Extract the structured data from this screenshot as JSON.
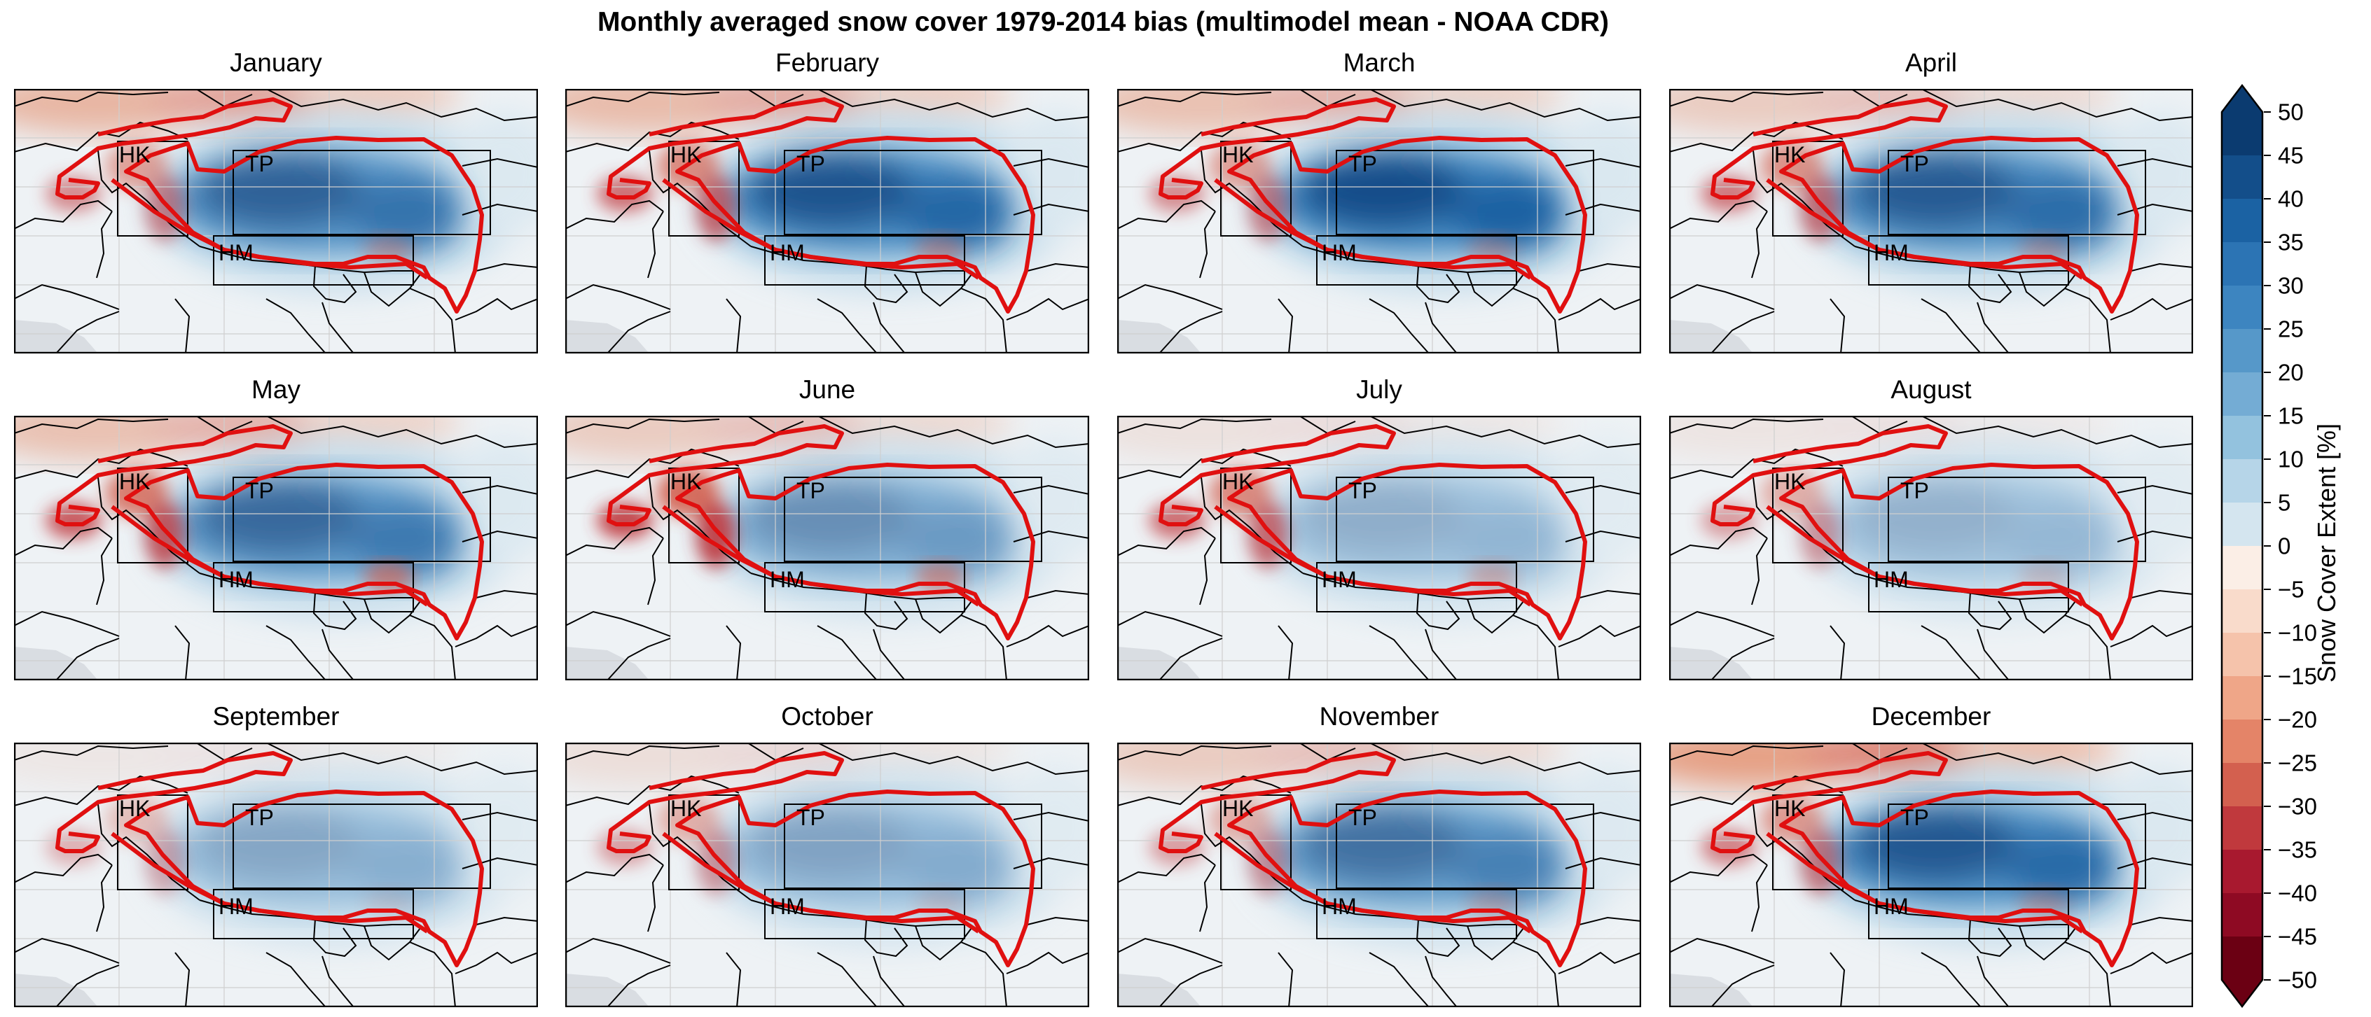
{
  "title": "Monthly averaged snow cover 1979-2014 bias (multimodel mean - NOAA CDR)",
  "months": [
    "January",
    "February",
    "March",
    "April",
    "May",
    "June",
    "July",
    "August",
    "September",
    "October",
    "November",
    "December"
  ],
  "region_labels": {
    "hk": "HK",
    "tp": "TP",
    "hm": "HM"
  },
  "colorbar": {
    "label": "Snow Cover Extent [%]",
    "ticks": [
      "50",
      "45",
      "40",
      "35",
      "30",
      "25",
      "20",
      "15",
      "10",
      "5",
      "0",
      "−5",
      "−10",
      "−15",
      "−20",
      "−25",
      "−30",
      "−35",
      "−40",
      "−45",
      "−50"
    ],
    "colors": [
      "#0b3b70",
      "#134e8a",
      "#1b62a3",
      "#2c74b4",
      "#3d85c0",
      "#5698c9",
      "#74acd4",
      "#93c2de",
      "#b6d5e8",
      "#d4e5ef",
      "#eaf1f5",
      "#fbeee6",
      "#f9dbcb",
      "#f5c3ab",
      "#efa688",
      "#e48468",
      "#d3604f",
      "#c0393d",
      "#a8192f",
      "#8e0a23",
      "#6b0013"
    ],
    "extend": "both"
  },
  "chart_data": {
    "type": "heatmap",
    "title": "Monthly averaged snow cover 1979-2014 bias (multimodel mean - NOAA CDR)",
    "colorbar_label": "Snow Cover Extent [%]",
    "colorbar_range": [
      -50,
      50
    ],
    "colorbar_step": 5,
    "panels": [
      {
        "month": "January",
        "tp_bias_peak": 40,
        "hk_bias_peak": -25,
        "north_bias_peak": -25
      },
      {
        "month": "February",
        "tp_bias_peak": 45,
        "hk_bias_peak": -30,
        "north_bias_peak": -20
      },
      {
        "month": "March",
        "tp_bias_peak": 50,
        "hk_bias_peak": -25,
        "north_bias_peak": -20
      },
      {
        "month": "April",
        "tp_bias_peak": 45,
        "hk_bias_peak": -30,
        "north_bias_peak": -15
      },
      {
        "month": "May",
        "tp_bias_peak": 40,
        "hk_bias_peak": -35,
        "north_bias_peak": -20
      },
      {
        "month": "June",
        "tp_bias_peak": 25,
        "hk_bias_peak": -40,
        "north_bias_peak": -15
      },
      {
        "month": "July",
        "tp_bias_peak": 15,
        "hk_bias_peak": -30,
        "north_bias_peak": -5
      },
      {
        "month": "August",
        "tp_bias_peak": 15,
        "hk_bias_peak": -20,
        "north_bias_peak": -5
      },
      {
        "month": "September",
        "tp_bias_peak": 20,
        "hk_bias_peak": -15,
        "north_bias_peak": -5
      },
      {
        "month": "October",
        "tp_bias_peak": 20,
        "hk_bias_peak": -20,
        "north_bias_peak": -10
      },
      {
        "month": "November",
        "tp_bias_peak": 35,
        "hk_bias_peak": -20,
        "north_bias_peak": -15
      },
      {
        "month": "December",
        "tp_bias_peak": 45,
        "hk_bias_peak": -25,
        "north_bias_peak": -30
      }
    ]
  }
}
